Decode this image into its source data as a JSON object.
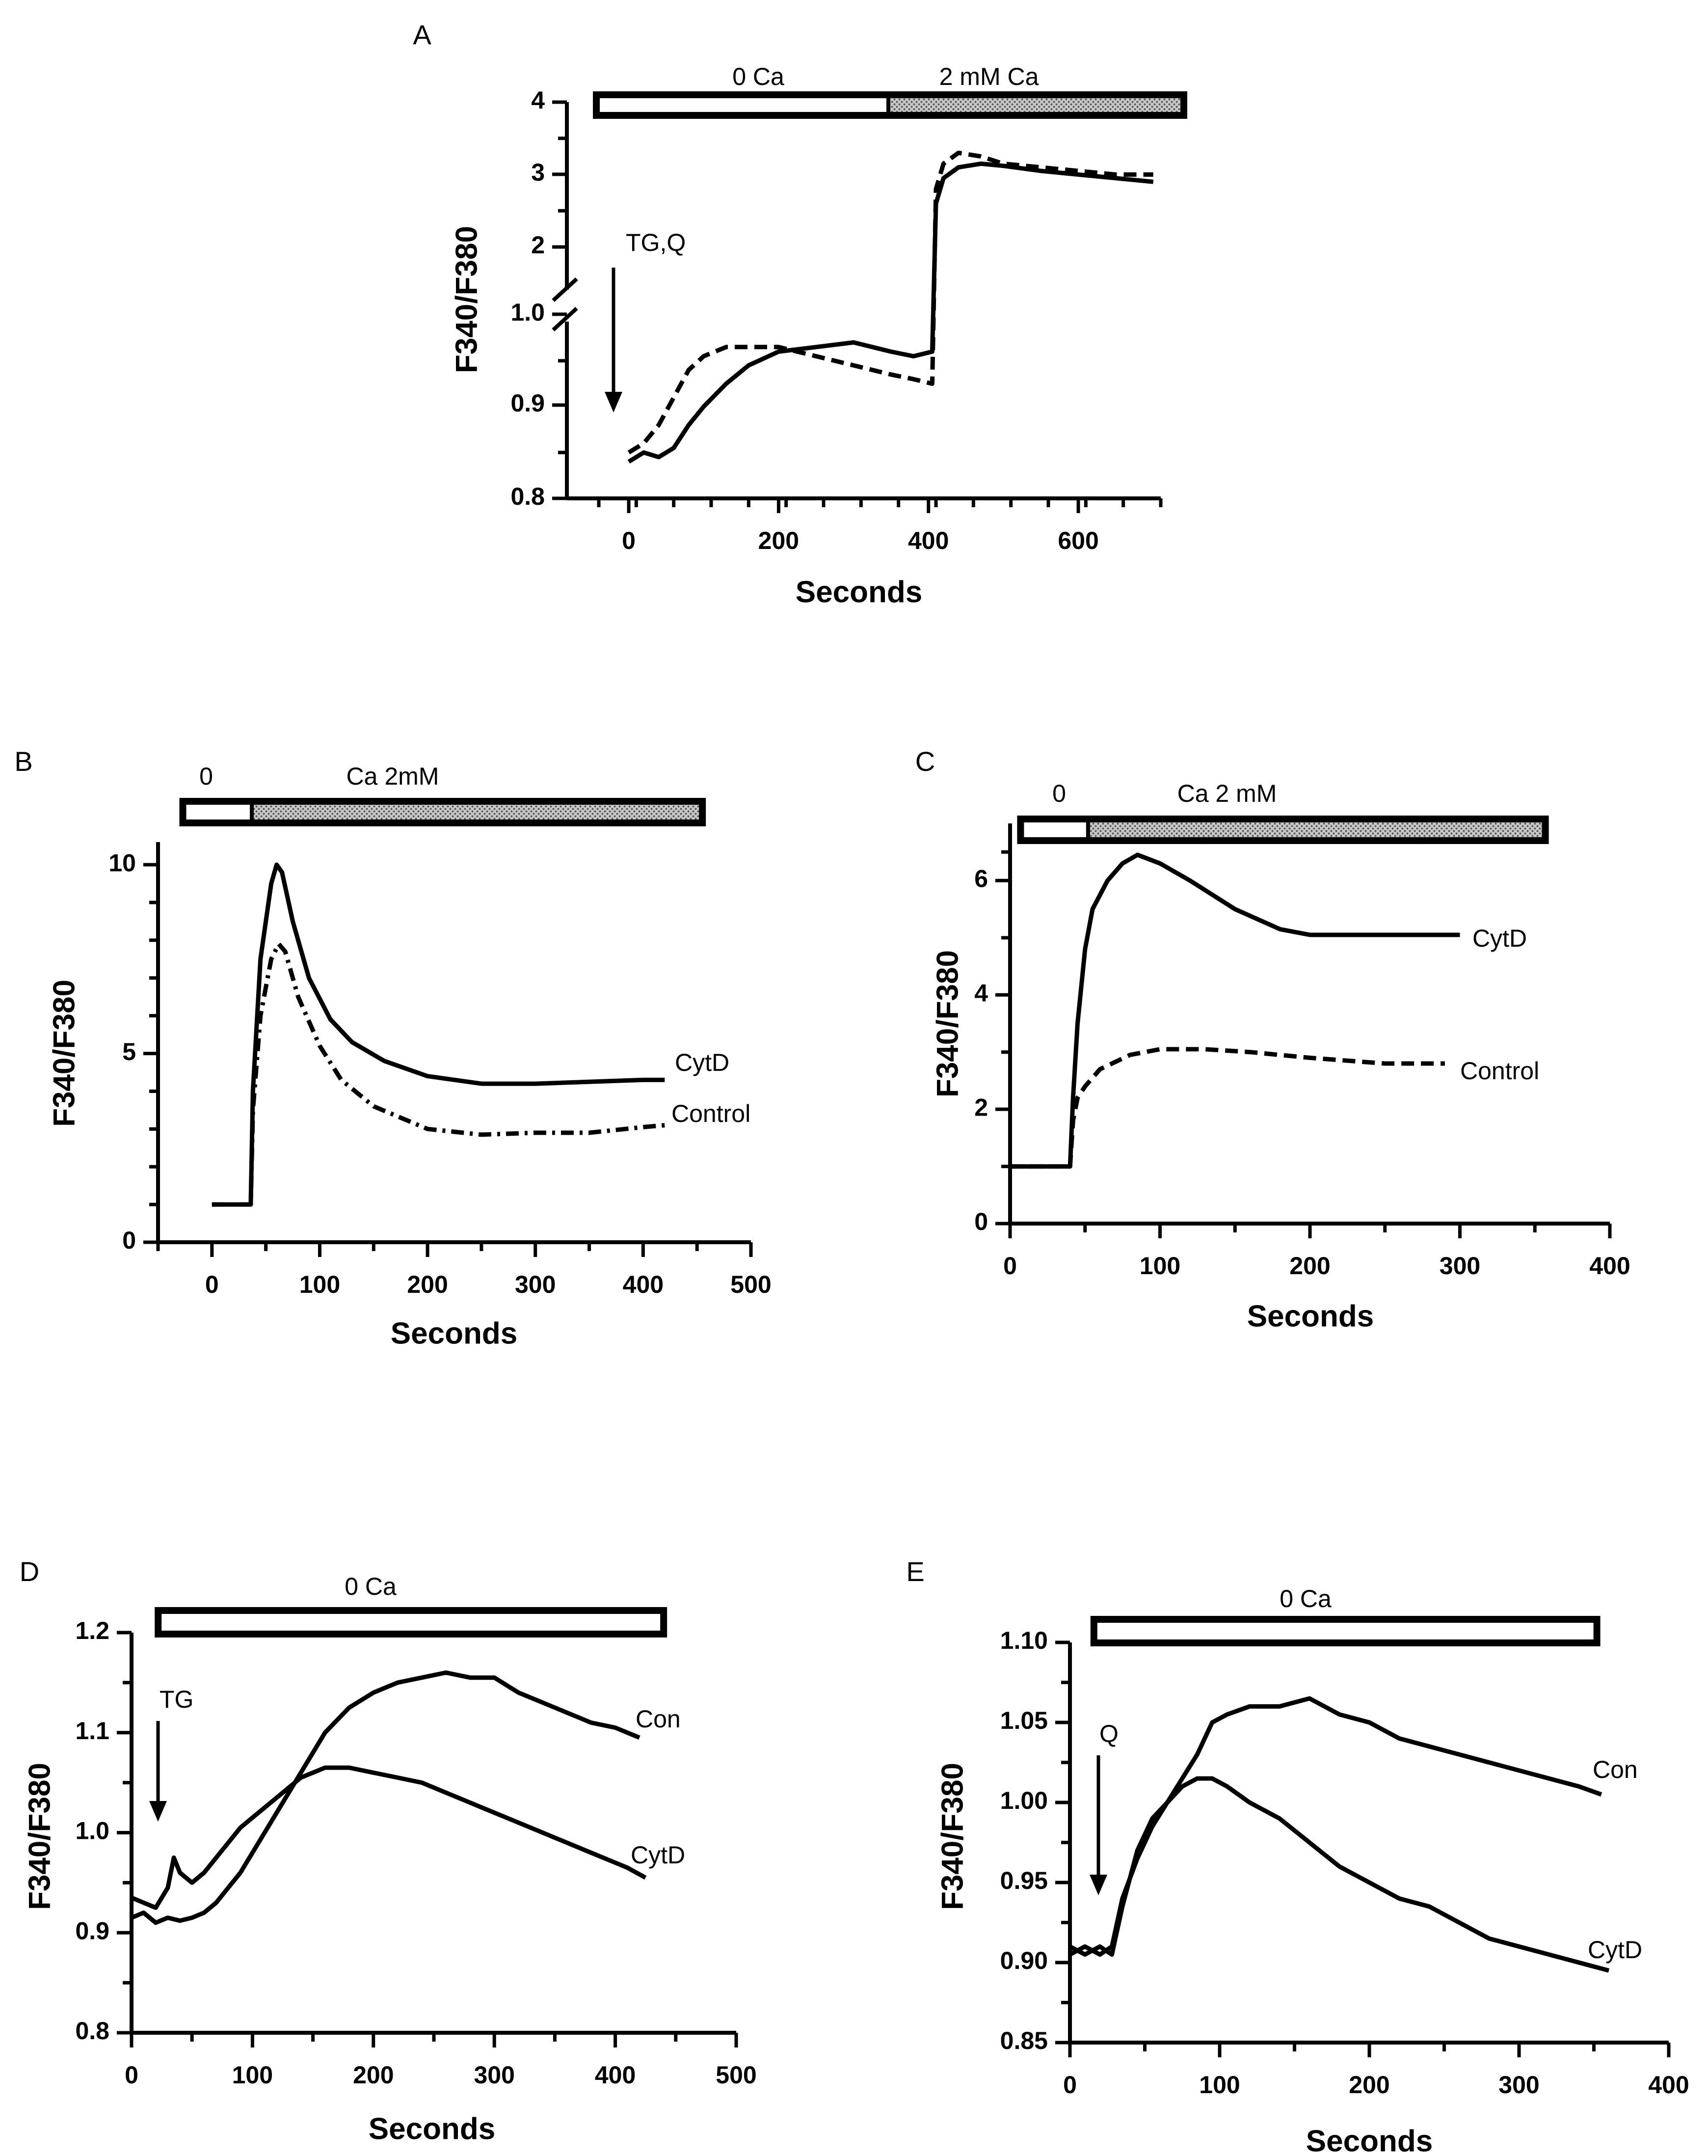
{
  "colors": {
    "ink": "#000000",
    "background": "#ffffff",
    "stipple": "#9a9a9a"
  },
  "chart_data": [
    {
      "id": "A",
      "panel_letter": "A",
      "type": "line",
      "xlabel": "Seconds",
      "ylabel": "F340/F380",
      "x_ticks": [
        "0",
        "200",
        "400",
        "600"
      ],
      "y_ticks": [
        "0.8",
        "0.9",
        "1.0",
        "2",
        "3",
        "4"
      ],
      "xlim": [
        -40,
        710
      ],
      "ylim_lower": [
        0.8,
        1.05
      ],
      "ylim_upper": [
        1.05,
        4.0
      ],
      "broken_y_axis": true,
      "perfusion_bar": [
        {
          "label": "0  Ca",
          "start": 0,
          "end": 365,
          "fill": "open"
        },
        {
          "label": "2 mM  Ca",
          "start": 365,
          "end": 735,
          "fill": "stippled"
        }
      ],
      "annotations": [
        {
          "text": "TG,Q",
          "arrow_x": 15,
          "arrow_y": 0.89
        }
      ],
      "series": [
        {
          "style": "solid",
          "x": [
            0,
            20,
            40,
            60,
            80,
            100,
            130,
            160,
            200,
            250,
            300,
            350,
            380,
            405,
            410,
            420,
            440,
            470,
            500,
            550,
            600,
            650,
            700
          ],
          "y": [
            0.84,
            0.85,
            0.845,
            0.855,
            0.88,
            0.9,
            0.925,
            0.945,
            0.96,
            0.965,
            0.97,
            0.96,
            0.955,
            0.96,
            2.6,
            2.95,
            3.1,
            3.15,
            3.12,
            3.05,
            3.0,
            2.95,
            2.9
          ]
        },
        {
          "style": "dashed",
          "x": [
            0,
            20,
            40,
            60,
            80,
            100,
            130,
            160,
            200,
            250,
            300,
            350,
            380,
            405,
            410,
            420,
            440,
            470,
            500,
            550,
            600,
            650,
            700
          ],
          "y": [
            0.85,
            0.86,
            0.88,
            0.91,
            0.94,
            0.955,
            0.965,
            0.965,
            0.965,
            0.955,
            0.945,
            0.935,
            0.93,
            0.925,
            2.8,
            3.15,
            3.3,
            3.25,
            3.15,
            3.1,
            3.05,
            3.0,
            3.0
          ]
        }
      ]
    },
    {
      "id": "B",
      "panel_letter": "B",
      "type": "line",
      "xlabel": "Seconds",
      "ylabel": "F340/F380",
      "x_ticks": [
        "0",
        "100",
        "200",
        "300",
        "400",
        "500"
      ],
      "y_ticks": [
        "0",
        "5",
        "10"
      ],
      "xlim": [
        -50,
        500
      ],
      "ylim": [
        0,
        10.6
      ],
      "perfusion_bar": [
        {
          "label": "0",
          "start": 0,
          "end": 0,
          "fill": "open"
        },
        {
          "label": "Ca 2mM",
          "start": 0,
          "end": 0,
          "fill": "stippled"
        }
      ],
      "bar_extent_x": [
        -27,
        37,
        455
      ],
      "series": [
        {
          "name": "CytD",
          "style": "solid",
          "x": [
            0,
            36,
            38,
            45,
            55,
            60,
            65,
            75,
            90,
            110,
            130,
            160,
            200,
            250,
            300,
            350,
            400,
            420
          ],
          "y": [
            1.0,
            1.0,
            4.0,
            7.5,
            9.5,
            10.0,
            9.8,
            8.5,
            7.0,
            5.9,
            5.3,
            4.8,
            4.4,
            4.2,
            4.2,
            4.25,
            4.3,
            4.3
          ]
        },
        {
          "name": "Control",
          "style": "dashdot",
          "x": [
            0,
            36,
            38,
            45,
            55,
            62,
            68,
            80,
            100,
            120,
            150,
            200,
            250,
            300,
            350,
            400,
            420
          ],
          "y": [
            1.0,
            1.0,
            3.5,
            6.0,
            7.5,
            7.9,
            7.7,
            6.5,
            5.2,
            4.3,
            3.6,
            3.0,
            2.85,
            2.9,
            2.9,
            3.05,
            3.1
          ]
        }
      ]
    },
    {
      "id": "C",
      "panel_letter": "C",
      "type": "line",
      "xlabel": "Seconds",
      "ylabel": "F340/F380",
      "x_ticks": [
        "0",
        "100",
        "200",
        "300",
        "400"
      ],
      "y_ticks": [
        "0",
        "2",
        "4",
        "6"
      ],
      "xlim": [
        0,
        400
      ],
      "ylim": [
        0,
        7.0
      ],
      "perfusion_bar": [
        {
          "label": "0",
          "start": 0,
          "end": 0,
          "fill": "open"
        },
        {
          "label": "Ca 2 mM",
          "start": 0,
          "end": 0,
          "fill": "stippled"
        }
      ],
      "bar_extent_x": [
        7,
        52,
        357
      ],
      "series": [
        {
          "name": "CytD",
          "style": "solid",
          "x": [
            0,
            40,
            42,
            45,
            50,
            55,
            65,
            75,
            85,
            100,
            120,
            150,
            180,
            200,
            250,
            300
          ],
          "y": [
            1.0,
            1.0,
            2.2,
            3.5,
            4.8,
            5.5,
            6.0,
            6.3,
            6.45,
            6.3,
            6.0,
            5.5,
            5.15,
            5.05,
            5.05,
            5.05
          ]
        },
        {
          "name": "Control",
          "style": "dashed",
          "x": [
            0,
            40,
            42,
            45,
            50,
            60,
            80,
            100,
            130,
            160,
            200,
            250,
            290
          ],
          "y": [
            1.0,
            1.0,
            1.8,
            2.2,
            2.4,
            2.7,
            2.95,
            3.05,
            3.05,
            3.0,
            2.9,
            2.8,
            2.8
          ]
        }
      ]
    },
    {
      "id": "D",
      "panel_letter": "D",
      "type": "line",
      "xlabel": "Seconds",
      "ylabel": "F340/F380",
      "x_ticks": [
        "0",
        "100",
        "200",
        "300",
        "400",
        "500"
      ],
      "y_ticks": [
        "0.8",
        "0.9",
        "1.0",
        "1.1",
        "1.2"
      ],
      "xlim": [
        0,
        500
      ],
      "ylim": [
        0.8,
        1.2
      ],
      "perfusion_bar": [
        {
          "label": "0  Ca",
          "start": 22,
          "end": 440,
          "fill": "open"
        }
      ],
      "annotations": [
        {
          "text": "TG",
          "arrow_x": 22,
          "arrow_y": 0.97
        }
      ],
      "series": [
        {
          "name": "Con",
          "style": "solid",
          "x": [
            0,
            10,
            20,
            30,
            40,
            50,
            60,
            70,
            80,
            90,
            100,
            120,
            140,
            160,
            180,
            200,
            220,
            240,
            260,
            280,
            300,
            320,
            340,
            360,
            380,
            400,
            410,
            420
          ],
          "y": [
            0.915,
            0.92,
            0.91,
            0.915,
            0.912,
            0.915,
            0.92,
            0.93,
            0.945,
            0.96,
            0.98,
            1.02,
            1.06,
            1.1,
            1.125,
            1.14,
            1.15,
            1.155,
            1.16,
            1.155,
            1.155,
            1.14,
            1.13,
            1.12,
            1.11,
            1.105,
            1.1,
            1.095
          ]
        },
        {
          "name": "CytD",
          "style": "solid",
          "x": [
            0,
            10,
            20,
            30,
            35,
            40,
            50,
            60,
            70,
            80,
            90,
            100,
            120,
            140,
            160,
            180,
            200,
            220,
            240,
            260,
            280,
            300,
            320,
            340,
            360,
            380,
            400,
            410,
            425
          ],
          "y": [
            0.935,
            0.93,
            0.925,
            0.945,
            0.975,
            0.96,
            0.95,
            0.96,
            0.975,
            0.99,
            1.005,
            1.015,
            1.035,
            1.055,
            1.065,
            1.065,
            1.06,
            1.055,
            1.05,
            1.04,
            1.03,
            1.02,
            1.01,
            1.0,
            0.99,
            0.98,
            0.97,
            0.965,
            0.955
          ]
        }
      ]
    },
    {
      "id": "E",
      "panel_letter": "E",
      "type": "line",
      "xlabel": "Seconds",
      "ylabel": "F340/F380",
      "x_ticks": [
        "0",
        "100",
        "200",
        "300",
        "400"
      ],
      "y_ticks": [
        "0.85",
        "0.90",
        "0.95",
        "1.00",
        "1.05",
        "1.10"
      ],
      "xlim": [
        0,
        400
      ],
      "ylim": [
        0.85,
        1.1
      ],
      "perfusion_bar": [
        {
          "label": "0  Ca",
          "start": 16,
          "end": 352,
          "fill": "open"
        }
      ],
      "annotations": [
        {
          "text": "Q",
          "arrow_x": 20,
          "arrow_y": 0.905
        }
      ],
      "series": [
        {
          "name": "Con",
          "style": "solid",
          "x": [
            0,
            10,
            20,
            28,
            35,
            45,
            55,
            65,
            75,
            85,
            95,
            105,
            120,
            140,
            160,
            180,
            200,
            220,
            240,
            260,
            280,
            300,
            320,
            340,
            355
          ],
          "y": [
            0.905,
            0.91,
            0.905,
            0.91,
            0.94,
            0.965,
            0.985,
            1.0,
            1.015,
            1.03,
            1.05,
            1.055,
            1.06,
            1.06,
            1.065,
            1.055,
            1.05,
            1.04,
            1.035,
            1.03,
            1.025,
            1.02,
            1.015,
            1.01,
            1.005
          ]
        },
        {
          "name": "CytD",
          "style": "solid",
          "x": [
            0,
            10,
            20,
            28,
            35,
            45,
            55,
            65,
            75,
            85,
            95,
            105,
            120,
            140,
            160,
            180,
            200,
            220,
            240,
            260,
            280,
            300,
            320,
            340,
            360
          ],
          "y": [
            0.91,
            0.905,
            0.91,
            0.905,
            0.935,
            0.97,
            0.99,
            1.0,
            1.01,
            1.015,
            1.015,
            1.01,
            1.0,
            0.99,
            0.975,
            0.96,
            0.95,
            0.94,
            0.935,
            0.925,
            0.915,
            0.91,
            0.905,
            0.9,
            0.895
          ]
        }
      ]
    }
  ]
}
